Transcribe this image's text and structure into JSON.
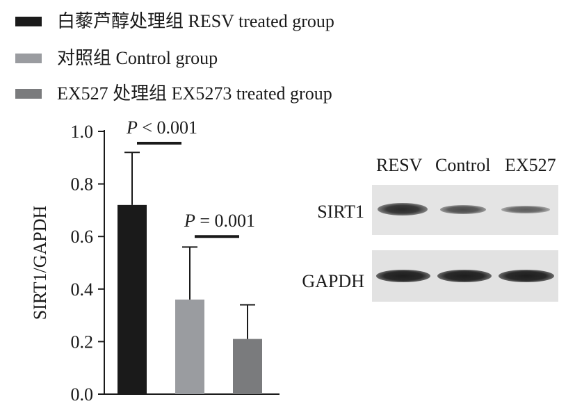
{
  "chart_data": {
    "type": "bar",
    "categories": [
      "白藜芦醇处理组 RESV treated group",
      "对照组 Control group",
      "EX527 处理组 EX5273 treated group"
    ],
    "values": [
      0.72,
      0.36,
      0.21
    ],
    "error_upper": [
      0.92,
      0.56,
      0.34
    ],
    "colors": [
      "#1a1a1a",
      "#9a9ca0",
      "#7a7b7d"
    ],
    "ylabel": "SIRT1/GAPDH",
    "xlabel": "",
    "ylim": [
      0,
      1.0
    ],
    "yticks": [
      "0.0",
      "0.2",
      "0.4",
      "0.6",
      "0.8",
      "1.0"
    ],
    "annotations": [
      {
        "text": "P < 0.001",
        "between": [
          0,
          1
        ]
      },
      {
        "text": "P = 0.001",
        "between": [
          1,
          2
        ]
      }
    ],
    "legend_position": "top-left"
  },
  "legend": [
    {
      "label": "白藜芦醇处理组 RESV treated group",
      "color": "#1a1a1a"
    },
    {
      "label": "对照组 Control group",
      "color": "#9a9ca0"
    },
    {
      "label": "EX527 处理组 EX5273 treated group",
      "color": "#7a7b7d"
    }
  ],
  "blot": {
    "lanes": [
      "RESV",
      "Control",
      "EX527"
    ],
    "rows": [
      "SIRT1",
      "GAPDH"
    ]
  }
}
